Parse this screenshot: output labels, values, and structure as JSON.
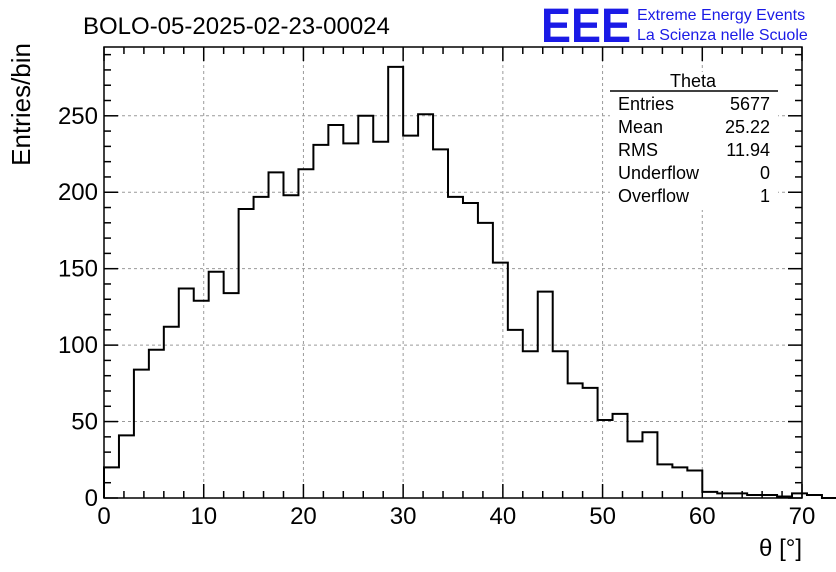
{
  "chart_data": {
    "type": "bar",
    "style": "step-histogram",
    "title": "BOLO-05-2025-02-23-00024",
    "xlabel": "θ [°]",
    "ylabel": "Entries/bin",
    "xlim": [
      0,
      70
    ],
    "ylim": [
      0,
      295
    ],
    "grid": true,
    "bin_width": 1.5,
    "bin_edges_start": 0,
    "x_ticks": [
      0,
      10,
      20,
      30,
      40,
      50,
      60,
      70
    ],
    "y_ticks": [
      0,
      50,
      100,
      150,
      200,
      250
    ],
    "values": [
      20,
      41,
      84,
      97,
      112,
      137,
      129,
      148,
      134,
      189,
      197,
      213,
      198,
      215,
      231,
      244,
      232,
      250,
      233,
      282,
      237,
      251,
      228,
      197,
      193,
      180,
      154,
      110,
      96,
      135,
      96,
      75,
      72,
      51,
      55,
      37,
      43,
      22,
      20,
      18,
      4,
      3,
      3,
      2,
      2,
      1,
      3,
      2,
      0,
      0,
      0,
      0,
      0,
      0,
      0,
      0,
      0
    ],
    "stats_box": {
      "title": "Theta",
      "rows": [
        {
          "label": "Entries",
          "value": "5677"
        },
        {
          "label": "Mean",
          "value": "25.22"
        },
        {
          "label": "RMS",
          "value": "11.94"
        },
        {
          "label": "Underflow",
          "value": "0"
        },
        {
          "label": "Overflow",
          "value": "1"
        }
      ]
    }
  },
  "logo": {
    "mark": "EEE",
    "line1": "Extreme Energy Events",
    "line2": "La Scienza nelle Scuole",
    "color": "#1a1ae6"
  }
}
